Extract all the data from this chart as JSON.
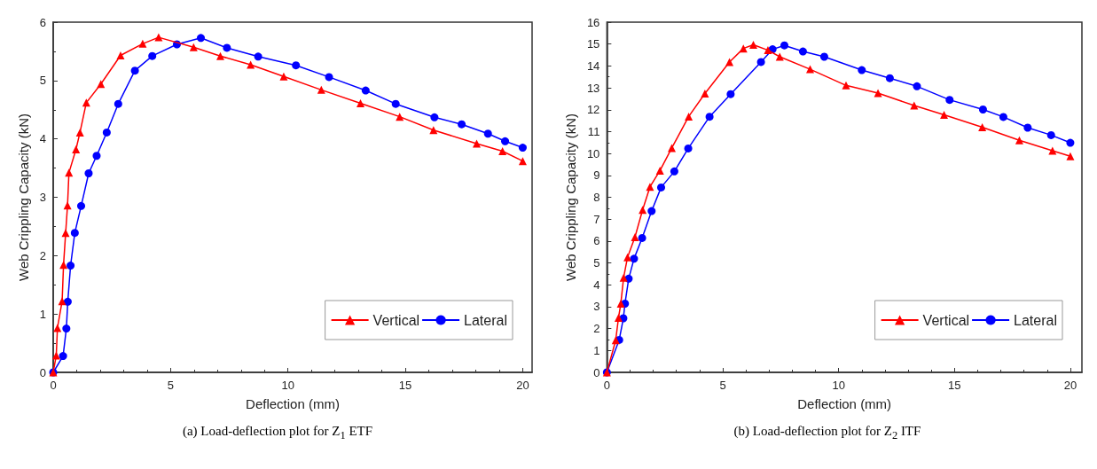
{
  "chart_data": [
    {
      "type": "line",
      "xlabel": "Deflection (mm)",
      "ylabel": "Web Crippling Capacity (kN)",
      "annotations": [
        "(a) Load-deflection plot for Z$_{1}$ ETF"
      ],
      "xlim": [
        0,
        20.4
      ],
      "xticks": [
        0,
        5,
        10,
        15,
        20
      ],
      "ylim": [
        0,
        6
      ],
      "yticks": [
        0,
        1,
        2,
        3,
        4,
        5,
        6
      ],
      "grid": false,
      "legend": "bottom right",
      "series": [
        {
          "name": "Vertical",
          "color": "#ff0000",
          "marker": "triangle",
          "x": [
            0,
            0.13,
            0.18,
            0.38,
            0.44,
            0.53,
            0.61,
            0.67,
            0.97,
            1.14,
            1.41,
            2.03,
            2.87,
            3.81,
            4.49,
            5.98,
            7.12,
            8.41,
            9.82,
            11.42,
            13.09,
            14.76,
            16.2,
            18.04,
            19.14,
            20
          ],
          "values": [
            0,
            0.29,
            0.76,
            1.22,
            1.84,
            2.39,
            2.86,
            3.42,
            3.82,
            4.11,
            4.62,
            4.94,
            5.43,
            5.63,
            5.74,
            5.57,
            5.42,
            5.27,
            5.07,
            4.84,
            4.61,
            4.38,
            4.15,
            3.92,
            3.79,
            3.62
          ]
        },
        {
          "name": "Lateral",
          "color": "#0000ff",
          "marker": "circle",
          "x": [
            0,
            0.42,
            0.56,
            0.62,
            0.74,
            0.92,
            1.19,
            1.51,
            1.85,
            2.28,
            2.77,
            3.48,
            4.22,
            5.27,
            6.29,
            7.4,
            8.73,
            10.34,
            11.75,
            13.31,
            14.59,
            16.24,
            17.4,
            18.52,
            19.25,
            20
          ],
          "values": [
            0,
            0.28,
            0.75,
            1.21,
            1.83,
            2.39,
            2.85,
            3.41,
            3.71,
            4.11,
            4.6,
            5.17,
            5.42,
            5.62,
            5.73,
            5.56,
            5.41,
            5.26,
            5.06,
            4.83,
            4.6,
            4.37,
            4.25,
            4.09,
            3.96,
            3.85
          ]
        }
      ]
    },
    {
      "type": "line",
      "xlabel": "Deflection (mm)",
      "ylabel": "Web Crippling Capacity (kN)",
      "annotations": [
        "(b) Load-deflection plot for Z$_{2}$ ITF"
      ],
      "xlim": [
        0,
        20.5
      ],
      "xticks": [
        0,
        5,
        10,
        15,
        20
      ],
      "ylim": [
        0,
        16
      ],
      "yticks": [
        0,
        1,
        2,
        3,
        4,
        5,
        6,
        7,
        8,
        9,
        10,
        11,
        12,
        13,
        14,
        15,
        16
      ],
      "grid": false,
      "legend": "bottom right",
      "series": [
        {
          "name": "Vertical",
          "color": "#ff0000",
          "marker": "triangle",
          "x": [
            0,
            0.38,
            0.5,
            0.6,
            0.72,
            0.89,
            1.21,
            1.54,
            1.86,
            2.29,
            2.8,
            3.53,
            4.23,
            5.29,
            5.89,
            6.32,
            6.95,
            7.46,
            8.77,
            10.32,
            11.7,
            13.26,
            14.55,
            16.2,
            17.8,
            19.23,
            20
          ],
          "values": [
            0,
            1.47,
            2.49,
            3.14,
            4.32,
            5.26,
            6.18,
            7.42,
            8.48,
            9.22,
            10.25,
            11.69,
            12.74,
            14.18,
            14.8,
            14.97,
            14.72,
            14.42,
            13.85,
            13.11,
            12.76,
            12.19,
            11.77,
            11.2,
            10.6,
            10.13,
            9.87
          ]
        },
        {
          "name": "Lateral",
          "color": "#0000ff",
          "marker": "circle",
          "x": [
            0,
            0.53,
            0.71,
            0.78,
            0.94,
            1.17,
            1.52,
            1.93,
            2.34,
            2.91,
            3.51,
            4.43,
            5.34,
            6.65,
            7.15,
            7.66,
            8.46,
            9.38,
            11.0,
            12.21,
            13.38,
            14.79,
            16.23,
            17.11,
            18.16,
            19.17,
            20
          ],
          "values": [
            0,
            1.48,
            2.47,
            3.14,
            4.28,
            5.19,
            6.14,
            7.37,
            8.45,
            9.18,
            10.23,
            11.68,
            12.71,
            14.18,
            14.76,
            14.94,
            14.66,
            14.42,
            13.81,
            13.44,
            13.07,
            12.45,
            12.01,
            11.67,
            11.18,
            10.84,
            10.49
          ]
        }
      ]
    }
  ]
}
